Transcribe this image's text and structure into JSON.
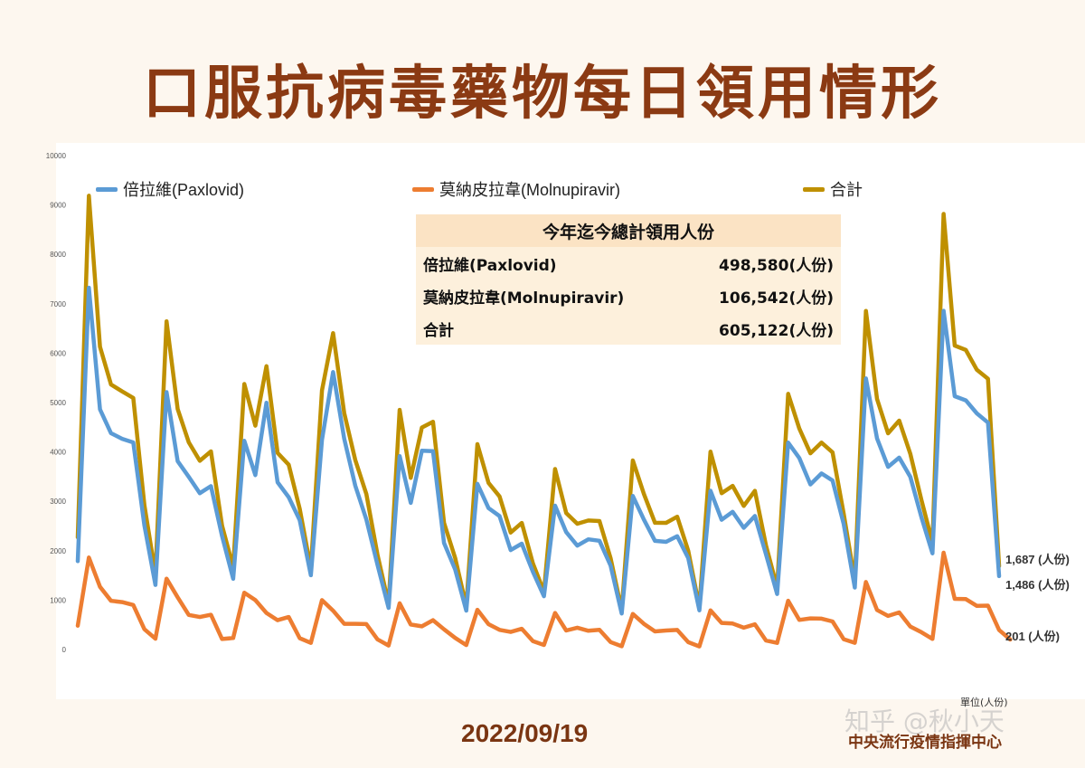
{
  "title": "口服抗病毒藥物每日領用情形",
  "date": "2022/09/19",
  "organization": "中央流行疫情指揮中心",
  "unit_label": "單位(人份)",
  "watermark": "知乎 @秋小天",
  "colors": {
    "paxlovid": "#5b9bd5",
    "molnupiravir": "#ed7d31",
    "total": "#bf9000",
    "title": "#8b3a13"
  },
  "summary": {
    "title": "今年迄今總計領用人份",
    "rows": [
      {
        "label": "倍拉維(Paxlovid)",
        "value": "498,580(人份)"
      },
      {
        "label": "莫納皮拉韋(Molnupiravir)",
        "value": "106,542(人份)"
      },
      {
        "label": "合計",
        "value": "605,122(人份)"
      }
    ]
  },
  "end_labels": {
    "total": "1,687 (人份)",
    "paxlovid": "1,486 (人份)",
    "molnupiravir": "201 (人份)"
  },
  "chart_data": {
    "type": "line",
    "ylim": [
      0,
      10000
    ],
    "yticks": [
      0,
      1000,
      2000,
      3000,
      4000,
      5000,
      6000,
      7000,
      8000,
      9000,
      10000
    ],
    "grid": false,
    "legend_position": "top",
    "series": [
      {
        "name": "倍拉維(Paxlovid)",
        "color": "#5b9bd5",
        "values": [
          1790,
          7324,
          4860,
          4379,
          4266,
          4192,
          2511,
          1307,
          5210,
          3813,
          3494,
          3164,
          3308,
          2296,
          1433,
          4225,
          3531,
          4996,
          3386,
          3084,
          2619,
          1503,
          4246,
          5618,
          4267,
          3318,
          2632,
          1714,
          842,
          3916,
          2969,
          4026,
          4015,
          2156,
          1620,
          788,
          3353,
          2862,
          2701,
          2013,
          2143,
          1574,
          1078,
          2913,
          2378,
          2103,
          2231,
          2201,
          1700,
          729,
          3108,
          2632,
          2200,
          2179,
          2293,
          1849,
          793,
          3214,
          2626,
          2788,
          2464,
          2703,
          1924,
          1124,
          4188,
          3877,
          3343,
          3564,
          3422,
          2542,
          1254,
          5488,
          4272,
          3698,
          3884,
          3496,
          2677,
          1947,
          6858,
          5129,
          5044,
          4780,
          4593,
          1486
        ]
      },
      {
        "name": "莫納皮拉韋(Molnupiravir)",
        "color": "#ed7d31",
        "values": [
          481,
          1863,
          1269,
          985,
          960,
          901,
          411,
          218,
          1434,
          1056,
          700,
          657,
          703,
          212,
          233,
          1151,
          1000,
          740,
          594,
          657,
          229,
          134,
          1000,
          786,
          521,
          520,
          514,
          206,
          80,
          936,
          506,
          468,
          594,
          408,
          234,
          90,
          804,
          512,
          397,
          356,
          419,
          169,
          91,
          740,
          385,
          442,
          380,
          400,
          150,
          66,
          720,
          520,
          366,
          385,
          396,
          149,
          62,
          791,
          538,
          525,
          442,
          509,
          181,
          133,
          988,
          598,
          630,
          625,
          568,
          209,
          135,
          1367,
          800,
          680,
          750,
          466,
          349,
          215,
          1960,
          1025,
          1021,
          883,
          889,
          395,
          201
        ]
      },
      {
        "name": "合計",
        "color": "#bf9000",
        "values": [
          2271,
          9187,
          6129,
          5364,
          5226,
          5093,
          2922,
          1525,
          6644,
          4869,
          4194,
          3821,
          4011,
          2508,
          1666,
          5376,
          4531,
          5736,
          3980,
          3741,
          2848,
          1637,
          5246,
          6404,
          4788,
          3838,
          3146,
          1920,
          922,
          4852,
          3475,
          4494,
          4609,
          2564,
          1854,
          878,
          4157,
          3374,
          3098,
          2369,
          2562,
          1743,
          1169,
          3653,
          2763,
          2545,
          2611,
          2601,
          1850,
          795,
          3828,
          3152,
          2566,
          2564,
          2689,
          1998,
          855,
          4005,
          3164,
          3313,
          2906,
          3212,
          2105,
          1257,
          5176,
          4475,
          3973,
          4189,
          3990,
          2751,
          1389,
          6855,
          5072,
          4378,
          4634,
          3962,
          3026,
          2162,
          8818,
          6154,
          6065,
          5663,
          5482,
          1687
        ]
      }
    ],
    "legend_entries": [
      "倍拉維(Paxlovid)",
      "莫納皮拉韋(Molnupiravir)",
      "合計"
    ]
  }
}
